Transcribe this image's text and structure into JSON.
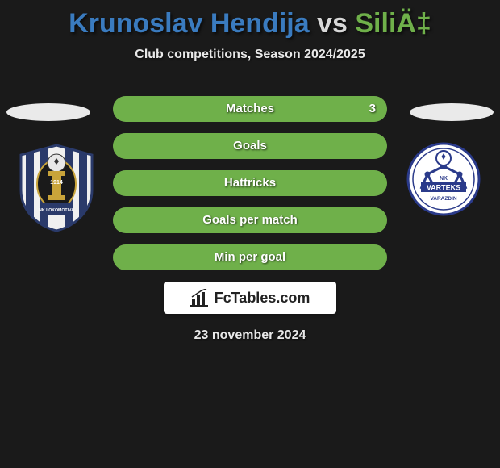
{
  "title": {
    "text": "Krunoslav Hendija vs SiliÄ‡",
    "color_a": "#3a7bbf",
    "color_b": "#6fb04a"
  },
  "subtitle": "Club competitions, Season 2024/2025",
  "stats": [
    {
      "label": "Matches",
      "value": "3",
      "fill_pct": 100,
      "fill_color": "#6fb04a",
      "bg_color": "#3a3a3a"
    },
    {
      "label": "Goals",
      "value": "",
      "fill_pct": 100,
      "fill_color": "#6fb04a",
      "bg_color": "#3a3a3a"
    },
    {
      "label": "Hattricks",
      "value": "",
      "fill_pct": 100,
      "fill_color": "#6fb04a",
      "bg_color": "#3a3a3a"
    },
    {
      "label": "Goals per match",
      "value": "",
      "fill_pct": 100,
      "fill_color": "#6fb04a",
      "bg_color": "#3a3a3a"
    },
    {
      "label": "Min per goal",
      "value": "",
      "fill_pct": 100,
      "fill_color": "#6fb04a",
      "bg_color": "#3a3a3a"
    }
  ],
  "brand": "FcTables.com",
  "date": "23 november 2024",
  "badge_left": {
    "outer": "#f0f0f0",
    "stripe": "#2a3a6a",
    "gold": "#c9a43a",
    "center": "#1a1a1a",
    "label": "NK LOKOMOTIVA",
    "year": "1914"
  },
  "badge_right": {
    "outer": "#ffffff",
    "blue": "#2a3a8a",
    "label_top": "NK",
    "label_mid": "VARTEKS",
    "label_bottom": "VARAZDIN"
  }
}
